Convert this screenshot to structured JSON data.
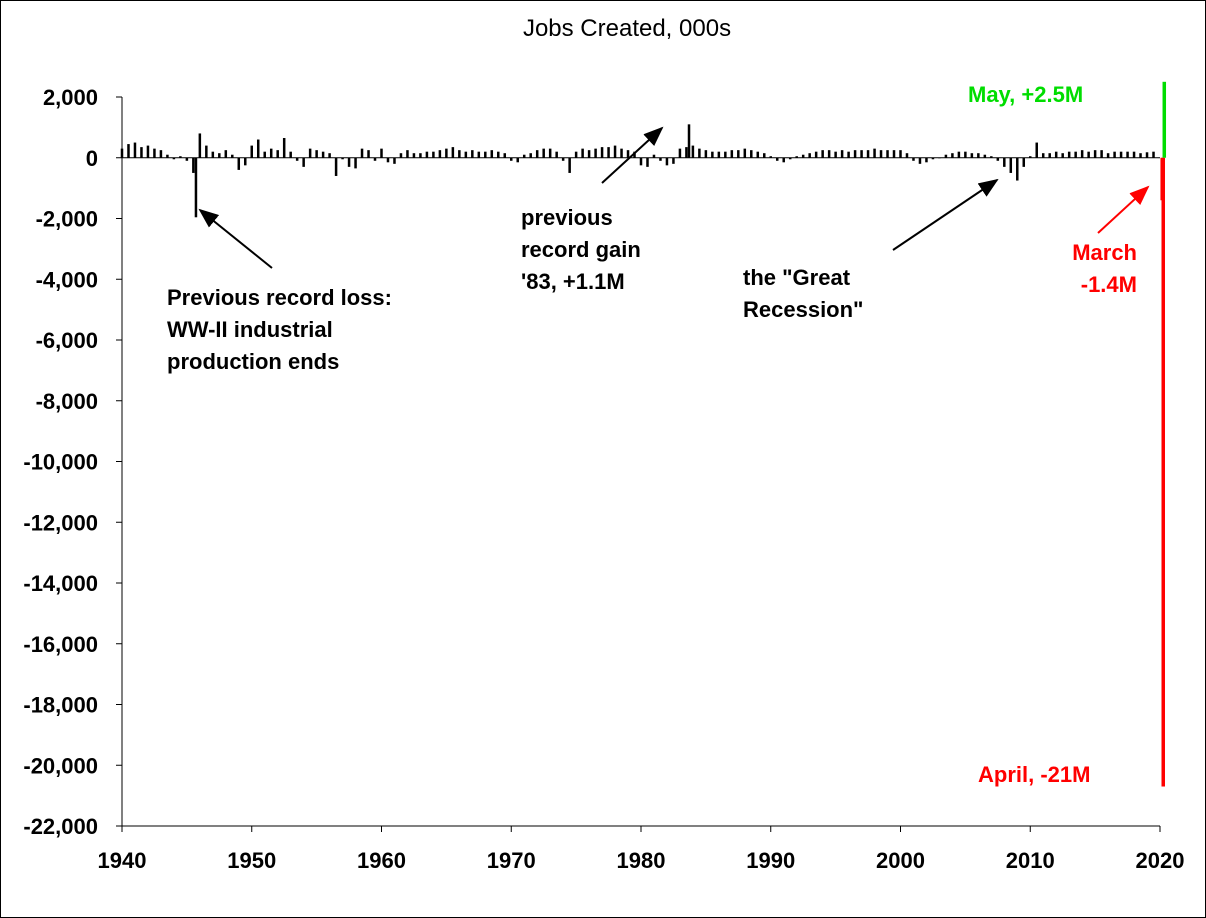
{
  "chart_data": {
    "type": "bar",
    "title": "Jobs Created, 000s",
    "xlim": [
      1940,
      2020
    ],
    "xticks": [
      1940,
      1950,
      1960,
      1970,
      1980,
      1990,
      2000,
      2010,
      2020
    ],
    "ylim": [
      -22000,
      2000
    ],
    "yticks": [
      {
        "value": 2000,
        "label": "2,000"
      },
      0,
      {
        "value": -2000,
        "label": "-2,000"
      },
      {
        "value": -4000,
        "label": "-4,000"
      },
      {
        "value": -6000,
        "label": "-6,000"
      },
      {
        "value": -8000,
        "label": "-8,000"
      },
      {
        "value": -10000,
        "label": "-10,000"
      },
      {
        "value": -12000,
        "label": "-12,000"
      },
      {
        "value": -14000,
        "label": "-14,000"
      },
      {
        "value": -16000,
        "label": "-16,000"
      },
      {
        "value": -18000,
        "label": "-18,000"
      },
      {
        "value": -20000,
        "label": "-20,000"
      },
      {
        "value": -22000,
        "label": "-22,000"
      }
    ],
    "grid": false,
    "series": [
      {
        "color": "#000000",
        "x": [
          1940,
          1940.5,
          1941,
          1941.5,
          1942,
          1942.5,
          1943,
          1943.5,
          1944,
          1944.5,
          1945,
          1945.5,
          1945.7,
          1946,
          1946.5,
          1947,
          1947.5,
          1948,
          1948.5,
          1949,
          1949.5,
          1950,
          1950.5,
          1951,
          1951.5,
          1952,
          1952.5,
          1953,
          1953.5,
          1954,
          1954.5,
          1955,
          1955.5,
          1956,
          1956.5,
          1957,
          1957.5,
          1958,
          1958.5,
          1959,
          1959.5,
          1960,
          1960.5,
          1961,
          1961.5,
          1962,
          1962.5,
          1963,
          1963.5,
          1964,
          1964.5,
          1965,
          1965.5,
          1966,
          1966.5,
          1967,
          1967.5,
          1968,
          1968.5,
          1969,
          1969.5,
          1970,
          1970.5,
          1971,
          1971.5,
          1972,
          1972.5,
          1973,
          1973.5,
          1974,
          1974.5,
          1975,
          1975.5,
          1976,
          1976.5,
          1977,
          1977.5,
          1978,
          1978.5,
          1979,
          1979.5,
          1980,
          1980.5,
          1981,
          1981.5,
          1982,
          1982.5,
          1983,
          1983.5,
          1983.7,
          1984,
          1984.5,
          1985,
          1985.5,
          1986,
          1986.5,
          1987,
          1987.5,
          1988,
          1988.5,
          1989,
          1989.5,
          1990,
          1990.5,
          1991,
          1991.5,
          1992,
          1992.5,
          1993,
          1993.5,
          1994,
          1994.5,
          1995,
          1995.5,
          1996,
          1996.5,
          1997,
          1997.5,
          1998,
          1998.5,
          1999,
          1999.5,
          2000,
          2000.5,
          2001,
          2001.5,
          2002,
          2002.5,
          2003,
          2003.5,
          2004,
          2004.5,
          2005,
          2005.5,
          2006,
          2006.5,
          2007,
          2007.5,
          2008,
          2008.5,
          2009,
          2009.5,
          2010,
          2010.5,
          2011,
          2011.5,
          2012,
          2012.5,
          2013,
          2013.5,
          2014,
          2014.5,
          2015,
          2015.5,
          2016,
          2016.5,
          2017,
          2017.5,
          2018,
          2018.5,
          2019,
          2019.5
        ],
        "values": [
          300,
          450,
          500,
          350,
          400,
          300,
          250,
          100,
          -50,
          50,
          -100,
          -500,
          -1960,
          800,
          400,
          200,
          150,
          250,
          100,
          -400,
          -250,
          400,
          600,
          200,
          300,
          250,
          650,
          200,
          -100,
          -300,
          300,
          250,
          200,
          150,
          -600,
          -50,
          -300,
          -350,
          300,
          250,
          -100,
          300,
          -150,
          -200,
          150,
          250,
          150,
          150,
          200,
          200,
          250,
          300,
          350,
          250,
          200,
          250,
          200,
          200,
          250,
          200,
          150,
          -100,
          -150,
          100,
          150,
          250,
          300,
          300,
          200,
          -100,
          -500,
          200,
          300,
          250,
          300,
          350,
          350,
          400,
          300,
          250,
          200,
          -250,
          -300,
          100,
          -100,
          -250,
          -200,
          300,
          350,
          1100,
          400,
          300,
          250,
          200,
          200,
          200,
          250,
          250,
          300,
          250,
          200,
          150,
          50,
          -100,
          -150,
          -50,
          50,
          100,
          150,
          200,
          250,
          250,
          200,
          250,
          200,
          250,
          250,
          250,
          300,
          250,
          250,
          250,
          250,
          150,
          -100,
          -200,
          -150,
          -50,
          0,
          100,
          150,
          200,
          200,
          150,
          150,
          100,
          50,
          -100,
          -300,
          -500,
          -750,
          -300,
          50,
          500,
          150,
          150,
          200,
          150,
          200,
          200,
          250,
          200,
          250,
          250,
          150,
          200,
          200,
          200,
          200,
          150,
          180,
          200
        ]
      },
      {
        "color": "#ff0000",
        "x": [
          2020.17,
          2020.25
        ],
        "values": [
          -1400,
          -20700
        ]
      },
      {
        "color": "#00dd00",
        "x": [
          2020.33
        ],
        "values": [
          2500
        ]
      }
    ],
    "annotations": [
      {
        "lines": [
          "Previous record loss:",
          "WW-II industrial",
          "production ends"
        ],
        "color": "#000000"
      },
      {
        "lines": [
          "previous",
          "record  gain",
          "'83, +1.1M"
        ],
        "color": "#000000"
      },
      {
        "lines": [
          "the \"Great",
          "Recession\""
        ],
        "color": "#000000"
      },
      {
        "lines": [
          "May, +2.5M"
        ],
        "color": "#00dd00"
      },
      {
        "lines": [
          "March",
          "-1.4M"
        ],
        "color": "#ff0000"
      },
      {
        "lines": [
          "April, -21M"
        ],
        "color": "#ff0000"
      }
    ]
  }
}
